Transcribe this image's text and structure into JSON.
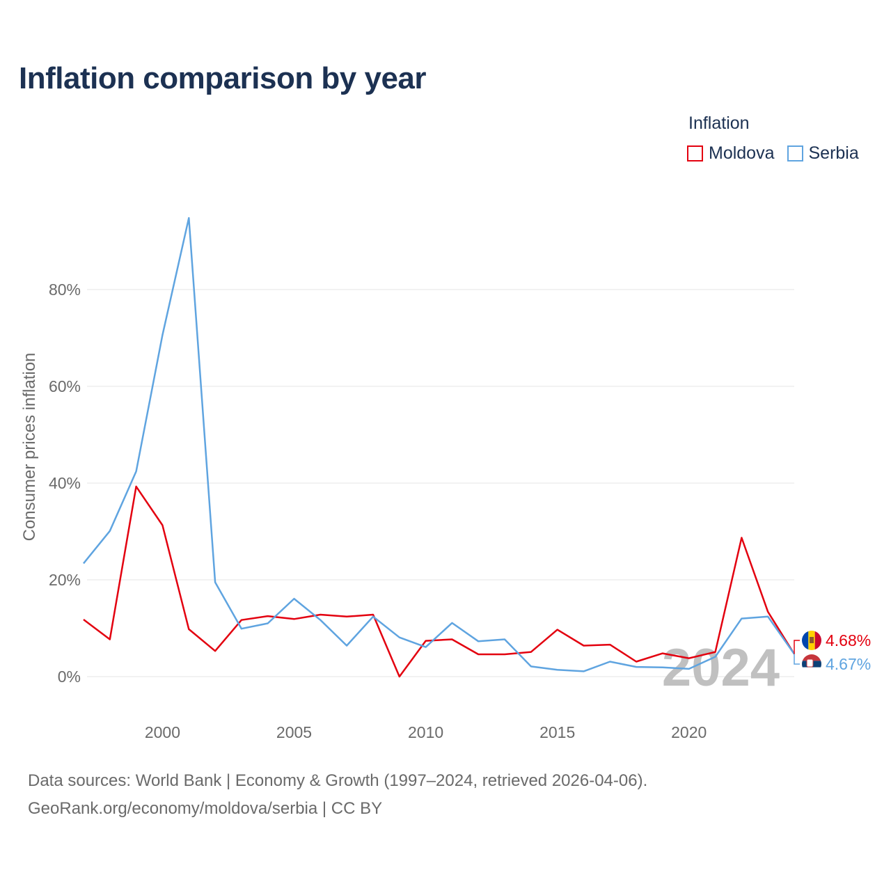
{
  "title": "Inflation comparison by year",
  "legend": {
    "title": "Inflation",
    "items": [
      {
        "label": "Moldova",
        "color": "#e3000f"
      },
      {
        "label": "Serbia",
        "color": "#5fa4e0"
      }
    ]
  },
  "watermark_year": "2024",
  "footer": {
    "line1": "Data sources: World Bank | Economy & Growth (1997–2024, retrieved 2026-04-06).",
    "line2": "GeoRank.org/economy/moldova/serbia | CC BY"
  },
  "chart_data": {
    "type": "line",
    "title": "Inflation comparison by year",
    "xlabel": "",
    "ylabel": "Consumer prices inflation",
    "x": [
      1997,
      1998,
      1999,
      2000,
      2001,
      2002,
      2003,
      2004,
      2005,
      2006,
      2007,
      2008,
      2009,
      2010,
      2011,
      2012,
      2013,
      2014,
      2015,
      2016,
      2017,
      2018,
      2019,
      2020,
      2021,
      2022,
      2023,
      2024
    ],
    "xlim": [
      1997,
      2024
    ],
    "ylim": [
      -10,
      95
    ],
    "x_ticks": [
      2000,
      2005,
      2010,
      2015,
      2020
    ],
    "x_tick_labels": [
      "2000",
      "2005",
      "2010",
      "2015",
      "2020"
    ],
    "y_ticks": [
      0,
      20,
      40,
      60,
      80
    ],
    "y_tick_labels": [
      "0%",
      "20%",
      "40%",
      "60%",
      "80%"
    ],
    "grid": true,
    "legend_position": "top-right",
    "series": [
      {
        "name": "Moldova",
        "color": "#e3000f",
        "end_label": "4.68%",
        "values": [
          11.8,
          7.7,
          39.3,
          31.3,
          9.8,
          5.3,
          11.7,
          12.5,
          11.9,
          12.8,
          12.4,
          12.8,
          0.0,
          7.4,
          7.7,
          4.6,
          4.6,
          5.1,
          9.7,
          6.4,
          6.6,
          3.1,
          4.8,
          3.8,
          5.1,
          28.7,
          13.4,
          4.68
        ]
      },
      {
        "name": "Serbia",
        "color": "#5fa4e0",
        "end_label": "4.67%",
        "values": [
          23.4,
          30.1,
          42.4,
          70.6,
          94.8,
          19.5,
          9.9,
          11.0,
          16.1,
          11.7,
          6.4,
          12.4,
          8.1,
          6.1,
          11.1,
          7.3,
          7.7,
          2.1,
          1.4,
          1.1,
          3.1,
          2.0,
          1.9,
          1.6,
          4.1,
          12.0,
          12.4,
          4.67
        ]
      }
    ]
  }
}
